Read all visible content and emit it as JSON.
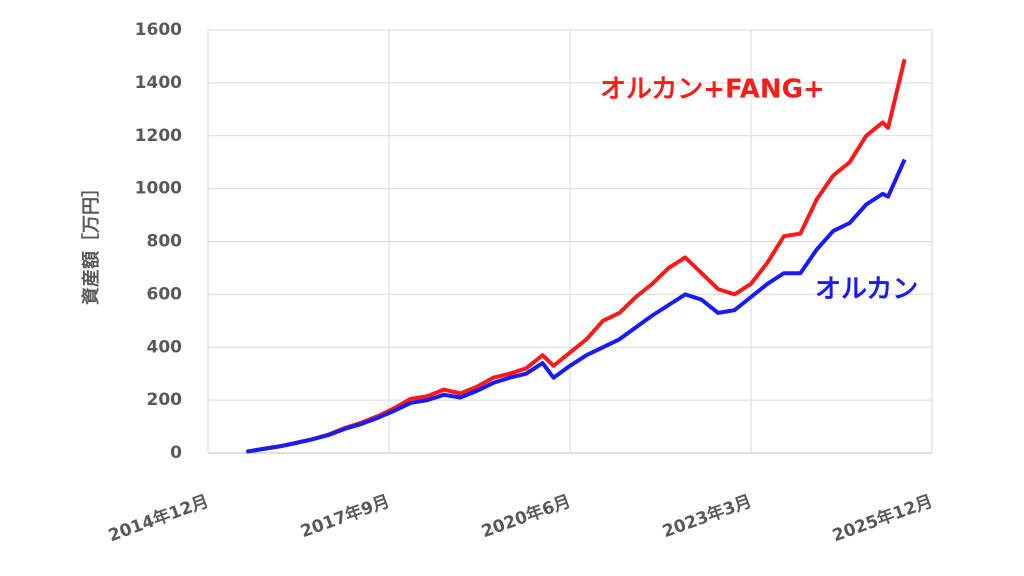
{
  "chart_data": {
    "type": "line",
    "ylabel": "資産額［万円］",
    "x": [
      "2015-07",
      "2015-10",
      "2016-01",
      "2016-04",
      "2016-07",
      "2016-10",
      "2017-01",
      "2017-04",
      "2017-07",
      "2017-10",
      "2018-01",
      "2018-04",
      "2018-07",
      "2018-10",
      "2019-01",
      "2019-04",
      "2019-07",
      "2019-10",
      "2020-01",
      "2020-03",
      "2020-06",
      "2020-09",
      "2020-12",
      "2021-03",
      "2021-06",
      "2021-09",
      "2021-12",
      "2022-03",
      "2022-06",
      "2022-09",
      "2022-12",
      "2023-03",
      "2023-06",
      "2023-09",
      "2023-12",
      "2024-03",
      "2024-06",
      "2024-09",
      "2024-12",
      "2025-03",
      "2025-04",
      "2025-07"
    ],
    "series": [
      {
        "name": "オルカン+FANG+",
        "color": "#ff1a1a",
        "values": [
          5,
          15,
          25,
          38,
          52,
          70,
          95,
          115,
          140,
          170,
          205,
          215,
          240,
          225,
          250,
          285,
          300,
          320,
          370,
          330,
          380,
          430,
          500,
          530,
          590,
          640,
          700,
          740,
          680,
          620,
          600,
          640,
          720,
          820,
          830,
          960,
          1050,
          1100,
          1200,
          1250,
          1230,
          1490
        ]
      },
      {
        "name": "オルカン",
        "color": "#1a1aff",
        "values": [
          5,
          15,
          25,
          38,
          52,
          68,
          92,
          110,
          133,
          160,
          190,
          200,
          220,
          210,
          235,
          265,
          285,
          300,
          340,
          285,
          330,
          370,
          400,
          430,
          475,
          520,
          560,
          600,
          580,
          530,
          540,
          590,
          640,
          680,
          680,
          770,
          840,
          870,
          940,
          980,
          970,
          1110
        ]
      }
    ],
    "xlim": [
      "2014-12",
      "2025-12"
    ],
    "xticks": [
      {
        "value": "2014-12",
        "label": "2014年12月"
      },
      {
        "value": "2017-09",
        "label": "2017年9月"
      },
      {
        "value": "2020-06",
        "label": "2020年6月"
      },
      {
        "value": "2023-03",
        "label": "2023年3月"
      },
      {
        "value": "2025-12",
        "label": "2025年12月"
      }
    ],
    "ylim": [
      0,
      1600
    ],
    "yticks": [
      0,
      200,
      400,
      600,
      800,
      1000,
      1200,
      1400,
      1600
    ],
    "grid": true
  }
}
